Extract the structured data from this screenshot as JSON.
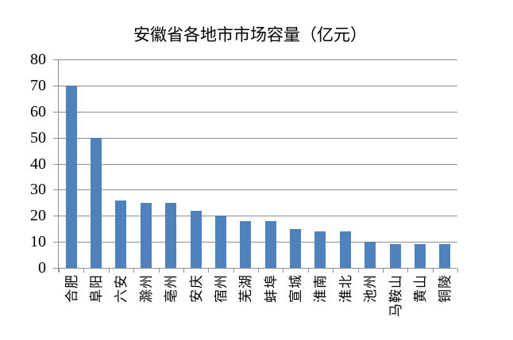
{
  "chart_data": {
    "type": "bar",
    "title": "安徽省各地市市场容量（亿元）",
    "categories": [
      "合肥",
      "阜阳",
      "六安",
      "滁州",
      "亳州",
      "安庆",
      "宿州",
      "芜湖",
      "蚌埠",
      "宣城",
      "淮南",
      "淮北",
      "池州",
      "马鞍山",
      "黄山",
      "铜陵"
    ],
    "values": [
      70,
      50,
      26,
      25,
      25,
      22,
      20,
      18,
      18,
      15,
      14,
      14,
      10,
      9,
      9,
      9
    ],
    "xlabel": "",
    "ylabel": "",
    "ylim": [
      0,
      80
    ],
    "yticks": [
      0,
      10,
      20,
      30,
      40,
      50,
      60,
      70,
      80
    ],
    "grid": "horizontal",
    "legend": "none",
    "colors": {
      "bar": "#4F81BD",
      "gridline": "#8E8E8E",
      "axis": "#8E8E8E",
      "text": "#000000",
      "background": "#FFFFFF"
    }
  }
}
